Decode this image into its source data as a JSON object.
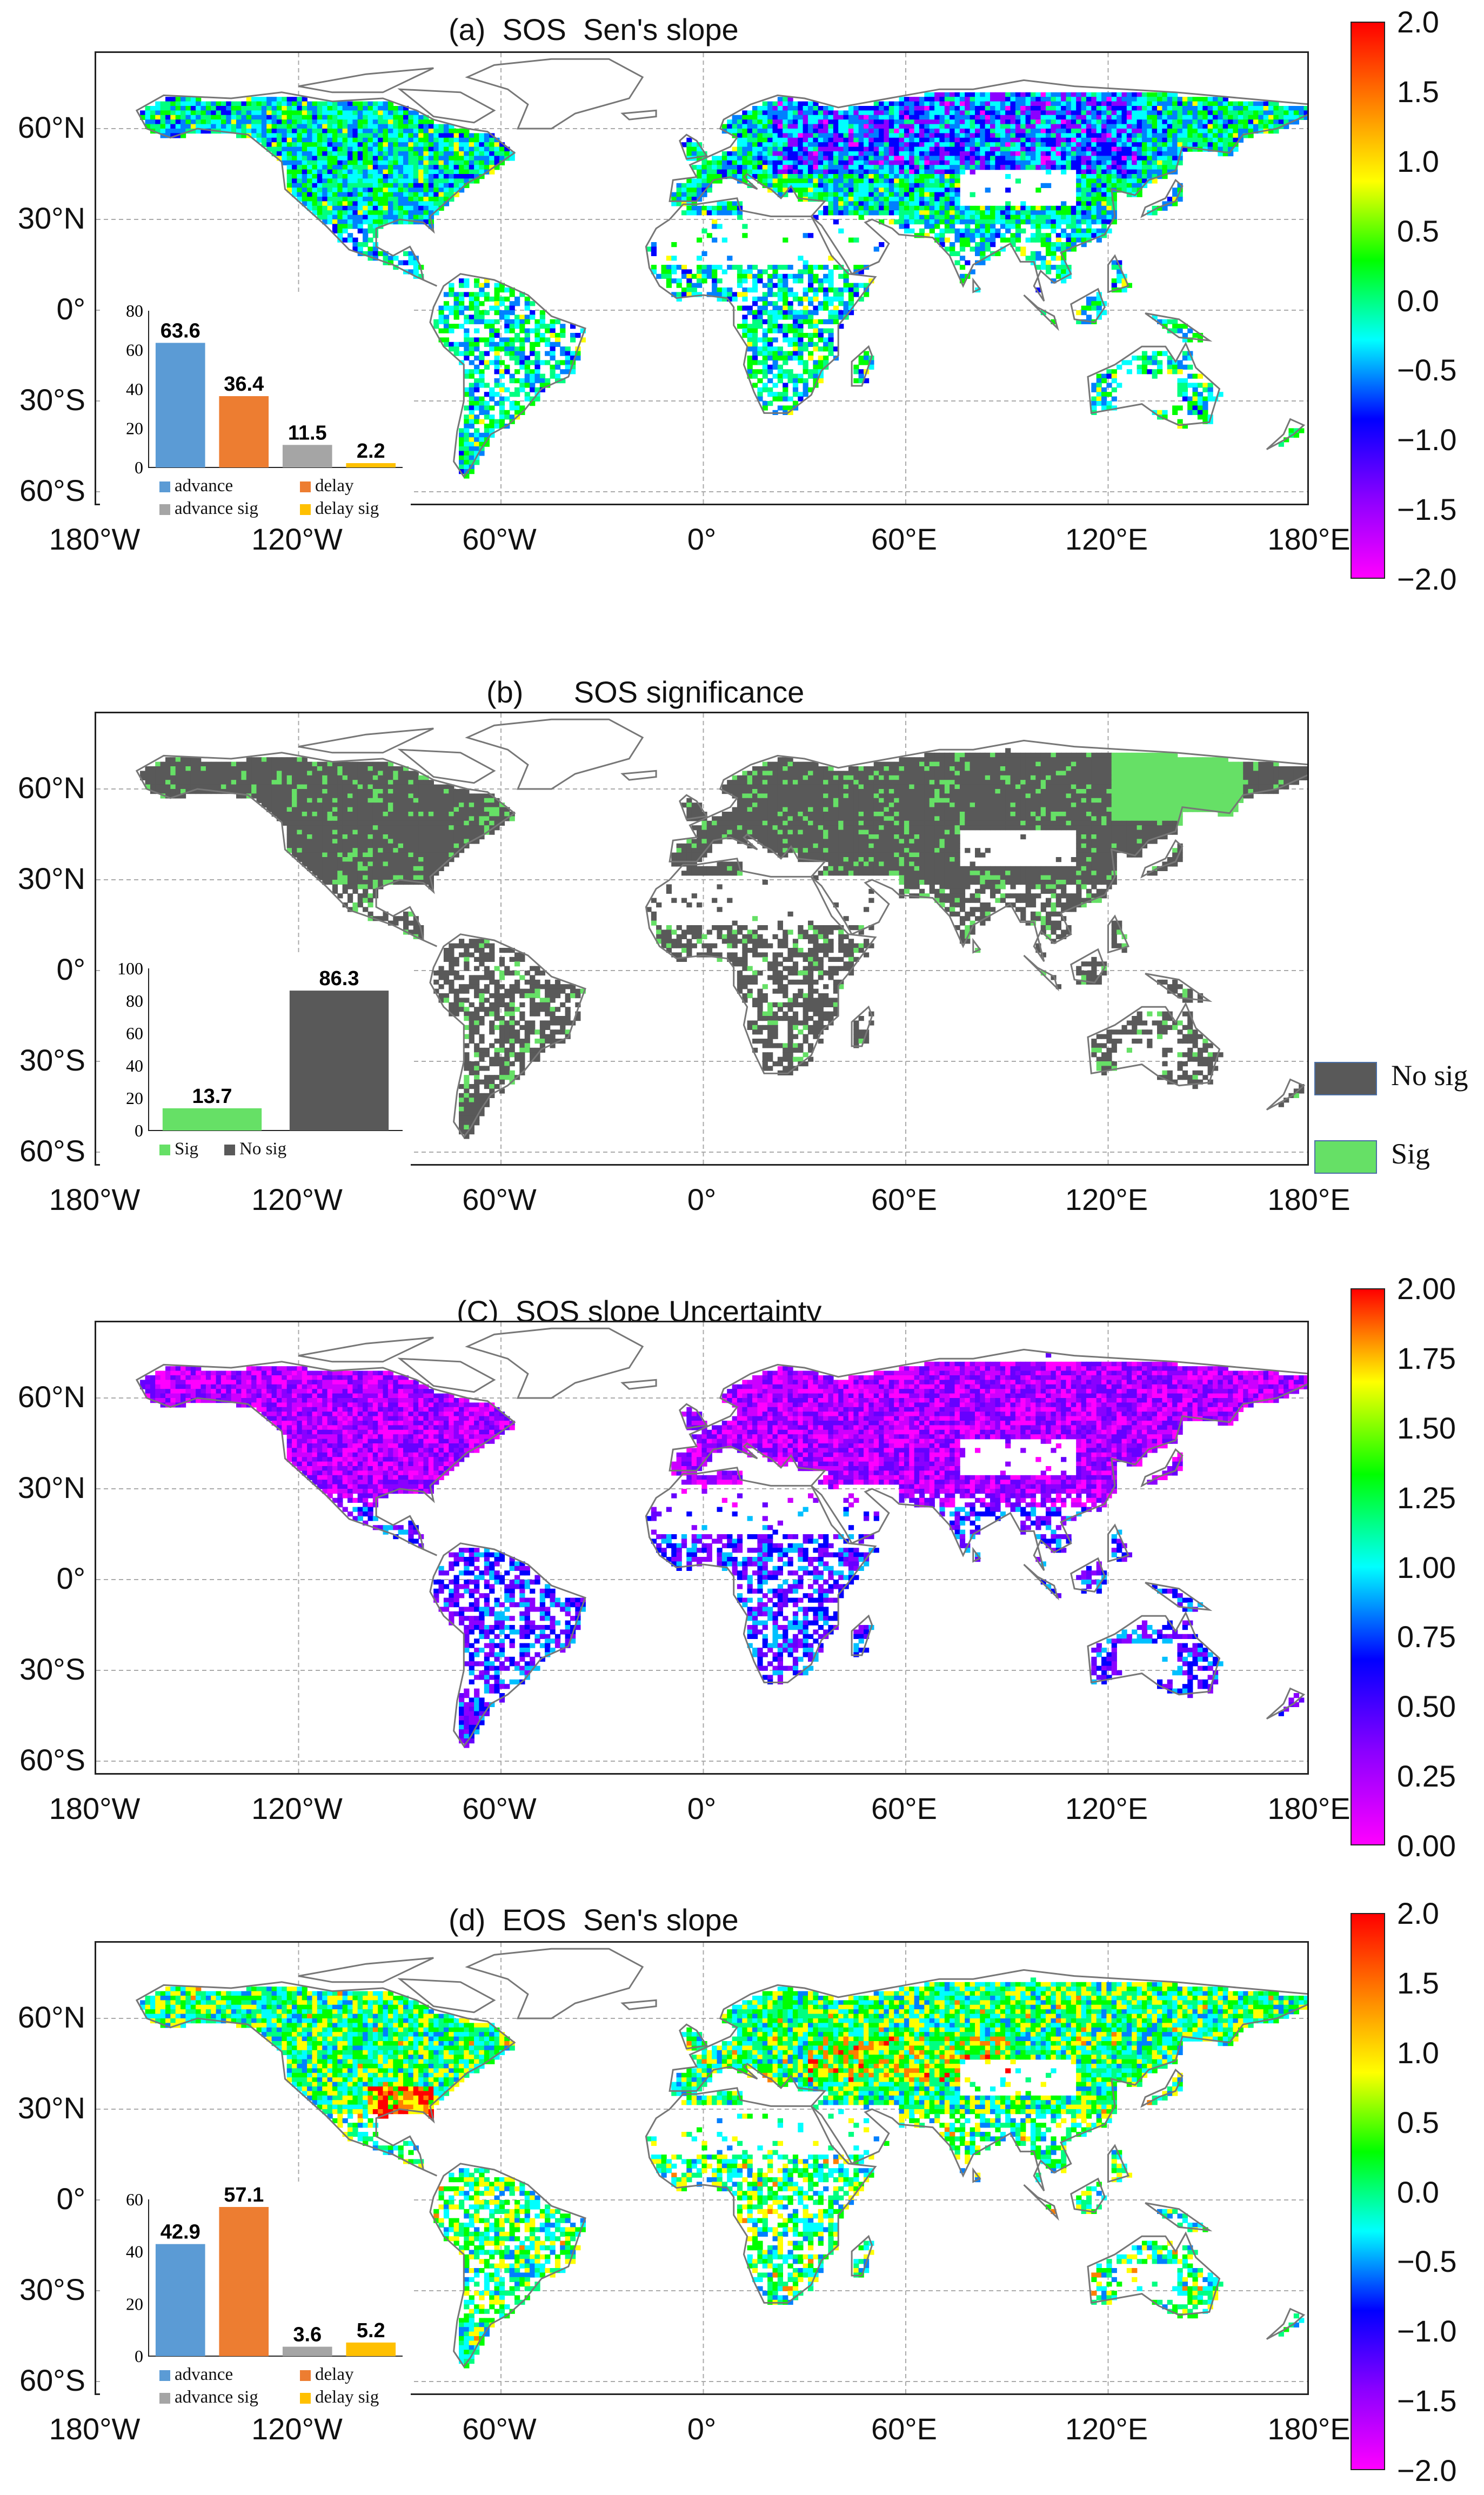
{
  "panels": [
    {
      "title": "(a)  SOS  Sen's slope",
      "colorbar": {
        "ticks": [
          "2.0",
          "1.5",
          "1.0",
          "0.5",
          "0.0",
          "−0.5",
          "−1.0",
          "−1.5",
          "−2.0"
        ],
        "colors": [
          "#ff0000",
          "#ff7f00",
          "#ffff00",
          "#00ff00",
          "#00ffff",
          "#0000ff",
          "#8b00ff",
          "#ff00ff"
        ]
      },
      "inset": {
        "yticks": [
          "80",
          "60",
          "40",
          "20",
          "0"
        ],
        "ymax": 80,
        "bars": [
          {
            "label": "advance",
            "value": 63.6,
            "color": "#5b9bd5"
          },
          {
            "label": "delay",
            "value": 36.4,
            "color": "#ed7d31"
          },
          {
            "label": "advance sig",
            "value": 11.5,
            "color": "#a5a5a5"
          },
          {
            "label": "delay sig",
            "value": 2.2,
            "color": "#ffc000"
          }
        ],
        "value_labels": [
          "63.6",
          "36.4",
          "11.5",
          "2.2"
        ]
      }
    },
    {
      "title": "(b)      SOS significance",
      "legend": [
        {
          "label": "No sig",
          "color": "#595959"
        },
        {
          "label": "Sig",
          "color": "#66e066"
        }
      ],
      "inset": {
        "yticks": [
          "100",
          "80",
          "60",
          "40",
          "20",
          "0"
        ],
        "ymax": 100,
        "bars": [
          {
            "label": "Sig",
            "value": 13.7,
            "color": "#66e066"
          },
          {
            "label": "No sig",
            "value": 86.3,
            "color": "#595959"
          }
        ],
        "value_labels": [
          "13.7",
          "86.3"
        ]
      }
    },
    {
      "title": "(C)  SOS slope Uncertainty",
      "colorbar": {
        "ticks": [
          "2.00",
          "1.75",
          "1.50",
          "1.25",
          "1.00",
          "0.75",
          "0.50",
          "0.25",
          "0.00"
        ],
        "colors": [
          "#ff0000",
          "#ffff00",
          "#00ff00",
          "#00ffff",
          "#0000ff",
          "#8b00ff",
          "#ff00ff"
        ]
      }
    },
    {
      "title": "(d)  EOS  Sen's slope",
      "colorbar": {
        "ticks": [
          "2.0",
          "1.5",
          "1.0",
          "0.5",
          "0.0",
          "−0.5",
          "−1.0",
          "−1.5",
          "−2.0"
        ],
        "colors": [
          "#ff0000",
          "#ff7f00",
          "#ffff00",
          "#00ff00",
          "#00ffff",
          "#0000ff",
          "#8b00ff",
          "#ff00ff"
        ]
      },
      "inset": {
        "yticks": [
          "60",
          "40",
          "20",
          "0"
        ],
        "ymax": 60,
        "bars": [
          {
            "label": "advance",
            "value": 42.9,
            "color": "#5b9bd5"
          },
          {
            "label": "delay",
            "value": 57.1,
            "color": "#ed7d31"
          },
          {
            "label": "advance sig",
            "value": 3.6,
            "color": "#a5a5a5"
          },
          {
            "label": "delay sig",
            "value": 5.2,
            "color": "#ffc000"
          }
        ],
        "value_labels": [
          "42.9",
          "57.1",
          "3.6",
          "5.2"
        ]
      }
    }
  ],
  "map_axes": {
    "lat_ticks": [
      "60°N",
      "30°N",
      "0°",
      "30°S",
      "60°S"
    ],
    "lon_ticks": [
      "180°W",
      "120°W",
      "60°W",
      "0°",
      "60°E",
      "120°E",
      "180°E"
    ]
  },
  "chart_data": [
    {
      "type": "bar",
      "panel": "a",
      "categories": [
        "advance",
        "delay",
        "advance sig",
        "delay sig"
      ],
      "values": [
        63.6,
        36.4,
        11.5,
        2.2
      ],
      "ylim": [
        0,
        80
      ]
    },
    {
      "type": "bar",
      "panel": "b",
      "categories": [
        "Sig",
        "No sig"
      ],
      "values": [
        13.7,
        86.3
      ],
      "ylim": [
        0,
        100
      ]
    },
    {
      "type": "bar",
      "panel": "d",
      "categories": [
        "advance",
        "delay",
        "advance sig",
        "delay sig"
      ],
      "values": [
        42.9,
        57.1,
        3.6,
        5.2
      ],
      "ylim": [
        0,
        60
      ]
    }
  ]
}
